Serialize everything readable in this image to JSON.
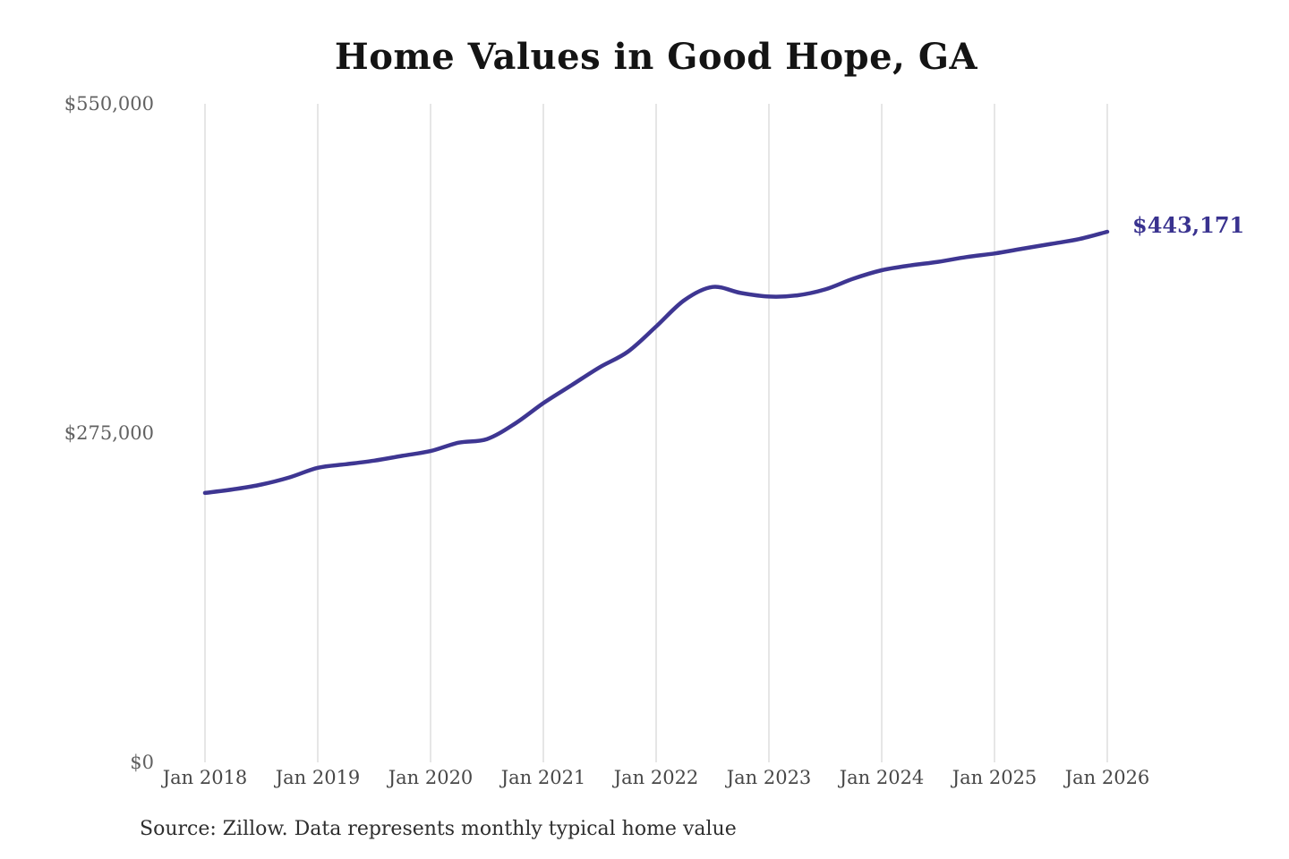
{
  "title": "Home Values in Good Hope, GA",
  "end_label": "$443,171",
  "source": "Source: Zillow. Data represents monthly typical home value",
  "colors": {
    "line": "#3e3692",
    "end_label": "#39328f",
    "grid": "#cccccc",
    "y_tick_text": "#616161",
    "x_tick_text": "#474747",
    "title_text": "#141414",
    "source_text": "#2e2e2e",
    "background": "#ffffff"
  },
  "chart_data": {
    "type": "line",
    "title": "Home Values in Good Hope, GA",
    "xlabel": "",
    "ylabel": "",
    "ylim": [
      0,
      550000
    ],
    "grid": "vertical-only",
    "legend": "none",
    "x": [
      "Jan 2018",
      "Apr 2018",
      "Jul 2018",
      "Oct 2018",
      "Jan 2019",
      "Apr 2019",
      "Jul 2019",
      "Oct 2019",
      "Jan 2020",
      "Apr 2020",
      "Jul 2020",
      "Oct 2020",
      "Jan 2021",
      "Apr 2021",
      "Jul 2021",
      "Oct 2021",
      "Jan 2022",
      "Apr 2022",
      "Jul 2022",
      "Oct 2022",
      "Jan 2023",
      "Apr 2023",
      "Jul 2023",
      "Oct 2023",
      "Jan 2024",
      "Apr 2024",
      "Jul 2024",
      "Oct 2024",
      "Jan 2025",
      "Apr 2025",
      "Jul 2025",
      "Oct 2025",
      "Jan 2026"
    ],
    "values": [
      225000,
      228000,
      232000,
      238000,
      246000,
      249000,
      252000,
      256000,
      260000,
      267000,
      270000,
      283000,
      300000,
      315000,
      330000,
      343000,
      364000,
      386000,
      397000,
      392000,
      389000,
      390000,
      395000,
      404000,
      411000,
      415000,
      418000,
      422000,
      425000,
      429000,
      433000,
      437000,
      443171
    ],
    "x_tick_labels": [
      "Jan 2018",
      "Jan 2019",
      "Jan 2020",
      "Jan 2021",
      "Jan 2022",
      "Jan 2023",
      "Jan 2024",
      "Jan 2025",
      "Jan 2026"
    ],
    "y_ticks": [
      {
        "label": "$550,000",
        "value": 550000
      },
      {
        "label": "$275,000",
        "value": 275000
      },
      {
        "label": "$0",
        "value": 0
      }
    ],
    "annotation": {
      "text": "$443,171",
      "value": 443171,
      "position": "end-of-line"
    }
  }
}
